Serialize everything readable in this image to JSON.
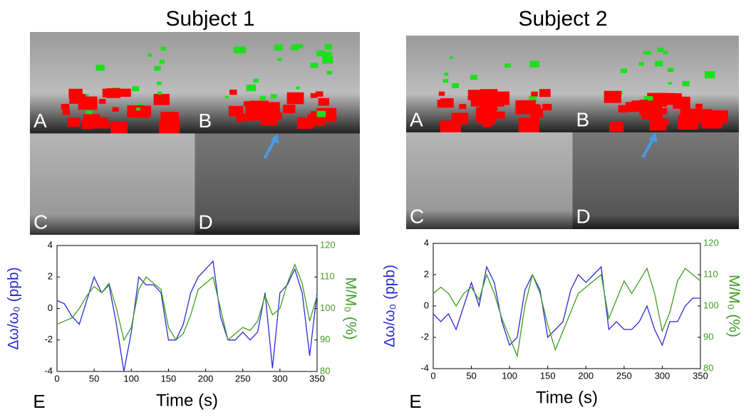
{
  "chart_data": [
    {
      "type": "line",
      "title": "Subject 1",
      "panels": [
        "A",
        "B",
        "C",
        "D"
      ],
      "label": "E",
      "xlabel": "Time (s)",
      "ylabel": "Δω/ω₀ (ppb)",
      "y2label": "M/M₀ (%)",
      "xlim": [
        0,
        350
      ],
      "xticks": [
        0,
        50,
        100,
        150,
        200,
        250,
        300,
        350
      ],
      "ylim": [
        -4,
        4
      ],
      "yticks": [
        -4,
        -2,
        0,
        2,
        4
      ],
      "y2lim": [
        80,
        120
      ],
      "y2ticks": [
        80,
        90,
        100,
        110,
        120
      ],
      "x": [
        0,
        10,
        20,
        30,
        40,
        50,
        60,
        70,
        80,
        90,
        100,
        110,
        120,
        130,
        140,
        150,
        160,
        170,
        180,
        190,
        200,
        210,
        220,
        230,
        240,
        250,
        260,
        270,
        280,
        290,
        300,
        310,
        320,
        330,
        340,
        350
      ],
      "series": [
        {
          "color": "#2b2bd9",
          "axis": "y",
          "values": [
            0.5,
            0.3,
            -0.5,
            -1,
            0.5,
            2,
            1,
            1.5,
            -1,
            -4,
            -1.5,
            2,
            1.5,
            1.5,
            1,
            -2,
            -2,
            -1,
            1,
            2,
            2.5,
            3,
            -0.5,
            -2,
            -2,
            -1.5,
            -2,
            -1.5,
            1,
            -3.8,
            1,
            1.5,
            2.5,
            1,
            -3,
            1
          ]
        },
        {
          "color": "#3f9e22",
          "axis": "y2",
          "values": [
            95,
            96,
            97,
            100,
            104,
            107,
            105,
            108,
            100,
            90,
            94,
            106,
            110,
            108,
            106,
            94,
            90,
            92,
            98,
            106,
            108,
            110,
            100,
            90,
            92,
            94,
            93,
            96,
            104,
            98,
            100,
            108,
            114,
            108,
            96,
            104
          ]
        }
      ]
    },
    {
      "type": "line",
      "title": "Subject 2",
      "panels": [
        "A",
        "B",
        "C",
        "D"
      ],
      "label": "E",
      "xlabel": "Time (s)",
      "ylabel": "Δω/ω₀ (ppb)",
      "y2label": "M/M₀ (%)",
      "xlim": [
        0,
        350
      ],
      "xticks": [
        0,
        50,
        100,
        150,
        200,
        250,
        300,
        350
      ],
      "ylim": [
        -4,
        4
      ],
      "yticks": [
        -4,
        -2,
        0,
        2,
        4
      ],
      "y2lim": [
        80,
        120
      ],
      "y2ticks": [
        80,
        90,
        100,
        110,
        120
      ],
      "x": [
        0,
        10,
        20,
        30,
        40,
        50,
        60,
        70,
        80,
        90,
        100,
        110,
        120,
        130,
        140,
        150,
        160,
        170,
        180,
        190,
        200,
        210,
        220,
        230,
        240,
        250,
        260,
        270,
        280,
        290,
        300,
        310,
        320,
        330,
        340,
        350
      ],
      "series": [
        {
          "color": "#2b2bd9",
          "axis": "y",
          "values": [
            -0.5,
            -1,
            -0.5,
            -1.5,
            0,
            1.5,
            0,
            2.5,
            1.5,
            -1,
            -2.5,
            -2,
            1,
            2,
            1,
            -2,
            -1.5,
            -1,
            1,
            2,
            1.5,
            2,
            2.5,
            -1.5,
            -1,
            -1.5,
            -1.5,
            -1,
            0,
            -1.5,
            -2.5,
            -1,
            -1,
            0,
            0.5,
            0.5
          ]
        },
        {
          "color": "#3f9e22",
          "axis": "y2",
          "values": [
            104,
            106,
            104,
            100,
            104,
            106,
            102,
            110,
            104,
            96,
            90,
            84,
            100,
            110,
            104,
            94,
            86,
            92,
            98,
            104,
            106,
            108,
            110,
            96,
            102,
            108,
            104,
            108,
            112,
            104,
            92,
            98,
            108,
            112,
            110,
            108
          ]
        }
      ]
    }
  ]
}
